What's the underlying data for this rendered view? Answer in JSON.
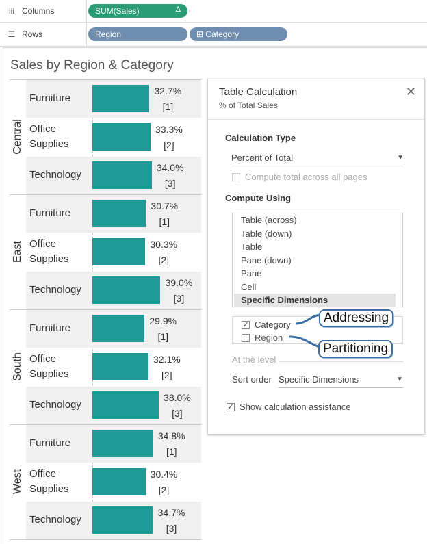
{
  "shelves": {
    "columns": {
      "label": "Columns",
      "icon": "columns-icon",
      "pill": "SUM(Sales)",
      "pill_marker": "Δ"
    },
    "rows": {
      "label": "Rows",
      "icon": "rows-icon",
      "pills": [
        "Region",
        "⊞ Category"
      ]
    }
  },
  "viz": {
    "title": "Sales by Region & Category",
    "regions": [
      {
        "name": "Central",
        "rows": [
          {
            "category": "Furniture",
            "pct": "32.7%",
            "rank": "[1]",
            "value": 32.7
          },
          {
            "category": "Office Supplies",
            "pct": "33.3%",
            "rank": "[2]",
            "value": 33.3
          },
          {
            "category": "Technology",
            "pct": "34.0%",
            "rank": "[3]",
            "value": 34.0
          }
        ]
      },
      {
        "name": "East",
        "rows": [
          {
            "category": "Furniture",
            "pct": "30.7%",
            "rank": "[1]",
            "value": 30.7
          },
          {
            "category": "Office Supplies",
            "pct": "30.3%",
            "rank": "[2]",
            "value": 30.3
          },
          {
            "category": "Technology",
            "pct": "39.0%",
            "rank": "[3]",
            "value": 39.0
          }
        ]
      },
      {
        "name": "South",
        "rows": [
          {
            "category": "Furniture",
            "pct": "29.9%",
            "rank": "[1]",
            "value": 29.9
          },
          {
            "category": "Office Supplies",
            "pct": "32.1%",
            "rank": "[2]",
            "value": 32.1
          },
          {
            "category": "Technology",
            "pct": "38.0%",
            "rank": "[3]",
            "value": 38.0
          }
        ]
      },
      {
        "name": "West",
        "rows": [
          {
            "category": "Furniture",
            "pct": "34.8%",
            "rank": "[1]",
            "value": 34.8
          },
          {
            "category": "Office Supplies",
            "pct": "30.4%",
            "rank": "[2]",
            "value": 30.4
          },
          {
            "category": "Technology",
            "pct": "34.7%",
            "rank": "[3]",
            "value": 34.7
          }
        ]
      }
    ],
    "bar_color": "#1f9a96"
  },
  "panel": {
    "title": "Table Calculation",
    "subtitle": "% of Total Sales",
    "close_icon": "close-icon",
    "calc_type_label": "Calculation Type",
    "calc_type_value": "Percent of Total",
    "compute_all_pages": "Compute total across all pages",
    "compute_using_label": "Compute Using",
    "compute_options": [
      "Table (across)",
      "Table (down)",
      "Table",
      "Pane (down)",
      "Pane",
      "Cell",
      "Specific Dimensions"
    ],
    "selected_option": "Specific Dimensions",
    "dims": [
      {
        "label": "Category",
        "checked": true
      },
      {
        "label": "Region",
        "checked": false
      }
    ],
    "at_level_label": "At the level",
    "sort_order_label": "Sort order",
    "sort_order_value": "Specific Dimensions",
    "show_assistance": "Show calculation assistance",
    "show_assistance_checked": true
  },
  "annotations": {
    "addressing": "Addressing",
    "partitioning": "Partitioning"
  },
  "colors": {
    "green_pill": "#2a9d77",
    "blue_pill": "#6f8dae",
    "annotation": "#3b6ea5"
  }
}
